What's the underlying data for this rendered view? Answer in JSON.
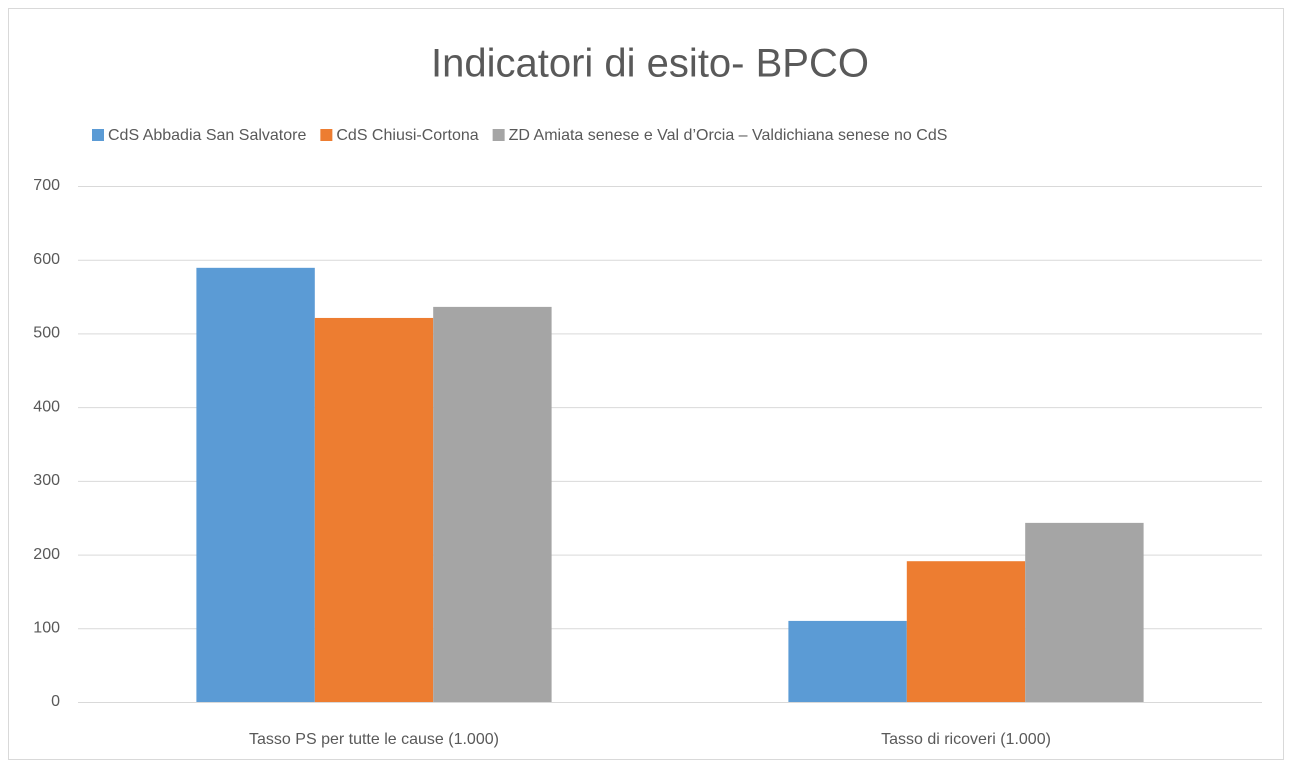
{
  "chart_data": {
    "type": "bar",
    "title": "Indicatori di esito- BPCO",
    "categories": [
      "Tasso PS per tutte le cause (1.000)",
      "Tasso di ricoveri (1.000)"
    ],
    "series": [
      {
        "name": "CdS Abbadia San Salvatore",
        "color": "#5b9bd5",
        "values": [
          589,
          110
        ]
      },
      {
        "name": "CdS Chiusi-Cortona",
        "color": "#ed7d31",
        "values": [
          521,
          191
        ]
      },
      {
        "name": "ZD Amiata senese e Val d’Orcia – Valdichiana senese no CdS",
        "color": "#a5a5a5",
        "values": [
          536,
          243
        ]
      }
    ],
    "ylim": [
      0,
      700
    ],
    "yticks": [
      0,
      100,
      200,
      300,
      400,
      500,
      600,
      700
    ],
    "grid": true,
    "legend": "top"
  }
}
